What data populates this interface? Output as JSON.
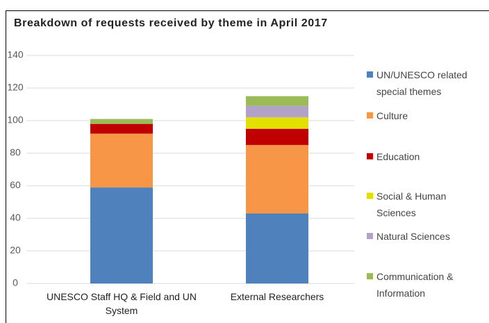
{
  "chart_data": {
    "type": "bar",
    "stacked": true,
    "title": "Breakdown of requests received by theme in April 2017",
    "categories": [
      "UNESCO Staff HQ & Field and UN System",
      "External Researchers"
    ],
    "series": [
      {
        "name": "UN/UNESCO related special themes",
        "color": "#4f81bd",
        "values": [
          59,
          43
        ]
      },
      {
        "name": "Culture",
        "color": "#f79646",
        "values": [
          33,
          42
        ]
      },
      {
        "name": "Education",
        "color": "#c00000",
        "values": [
          6,
          10
        ]
      },
      {
        "name": "Social & Human Sciences",
        "color": "#e2e000",
        "values": [
          0,
          7
        ]
      },
      {
        "name": "Natural Sciences",
        "color": "#b3a2c7",
        "values": [
          0,
          7
        ]
      },
      {
        "name": "Communication & Information",
        "color": "#9bbb59",
        "values": [
          3,
          6
        ]
      }
    ],
    "ylim": [
      0,
      140
    ],
    "yticks": [
      0,
      20,
      40,
      60,
      80,
      100,
      120,
      140
    ],
    "grid": true,
    "legend": "right"
  }
}
